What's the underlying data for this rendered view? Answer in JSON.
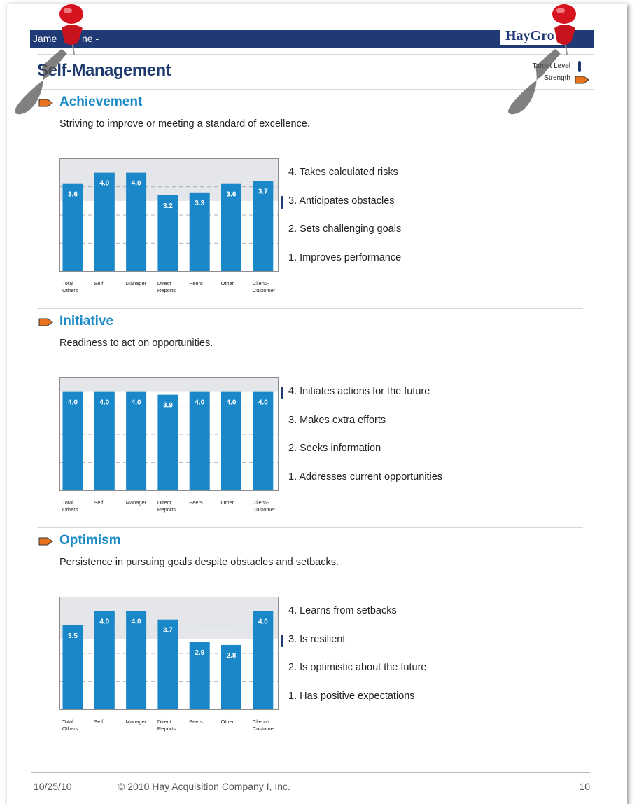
{
  "header": {
    "name_parts": [
      "Jame",
      "ne  -"
    ],
    "logo": "HayGro"
  },
  "page_title": "Self-Management",
  "legend": {
    "target": "Target Level",
    "strength": "Strength"
  },
  "sections": [
    {
      "title": "Achievement",
      "strength": true,
      "description": "Striving to improve or meeting a standard of excellence.",
      "items": [
        "4. Takes calculated risks",
        "3. Anticipates obstacles",
        "2. Sets challenging goals",
        "1. Improves performance"
      ],
      "target_item": 1
    },
    {
      "title": "Initiative",
      "strength": true,
      "description": "Readiness to act on opportunities.",
      "items": [
        "4. Initiates actions for the future",
        "3. Makes extra efforts",
        "2. Seeks information",
        "1. Addresses current opportunities"
      ],
      "target_item": 0
    },
    {
      "title": "Optimism",
      "strength": true,
      "description": "Persistence in pursuing goals despite obstacles and setbacks.",
      "items": [
        "4. Learns from setbacks",
        "3. Is resilient",
        "2. Is optimistic about the future",
        "1. Has positive expectations"
      ],
      "target_item": 1
    }
  ],
  "chart_data": [
    {
      "type": "bar",
      "categories": [
        "Total Others",
        "Self",
        "Manager",
        "Direct Reports",
        "Peers",
        "Other",
        "Client/- Customer"
      ],
      "values": [
        3.6,
        4,
        4,
        3.2,
        3.3,
        3.6,
        3.7
      ],
      "value_labels": [
        "3.6",
        "4.0",
        "4.0",
        "3.2",
        "3.3",
        "3.6",
        "3.7"
      ],
      "color": "#1a87c9",
      "ylim": [
        0.5,
        4.5
      ],
      "yticks": [
        1.5,
        2.5,
        3.5
      ],
      "grid": true,
      "target_level": 3,
      "target_color": "#e4e6e9"
    },
    {
      "type": "bar",
      "categories": [
        "Total Others",
        "Self",
        "Manager",
        "Direct Reports",
        "Peers",
        "Other",
        "Client/- Customer"
      ],
      "values": [
        4,
        4,
        4,
        3.9,
        4,
        4,
        4
      ],
      "value_labels": [
        "4.0",
        "4.0",
        "4.0",
        "3.9",
        "4.0",
        "4.0",
        "4.0"
      ],
      "color": "#1a87c9",
      "ylim": [
        0.5,
        4.5
      ],
      "yticks": [
        1.5,
        2.5,
        3.5
      ],
      "grid": true,
      "target_level": 4,
      "target_color": "#e4e6e9"
    },
    {
      "type": "bar",
      "categories": [
        "Total Others",
        "Self",
        "Manager",
        "Direct Reports",
        "Peers",
        "Other",
        "Client/- Customer"
      ],
      "values": [
        3.5,
        4,
        4,
        3.7,
        2.9,
        2.8,
        4
      ],
      "value_labels": [
        "3.5",
        "4.0",
        "4.0",
        "3.7",
        "2.9",
        "2.8",
        "4.0"
      ],
      "color": "#1a87c9",
      "ylim": [
        0.5,
        4.5
      ],
      "yticks": [
        1.5,
        2.5,
        3.5
      ],
      "grid": true,
      "target_level": 3,
      "target_color": "#e4e6e9"
    }
  ],
  "footer": {
    "date": "10/25/10",
    "copyright": "© 2010 Hay Acquisition Company I, Inc.",
    "page": "10"
  }
}
